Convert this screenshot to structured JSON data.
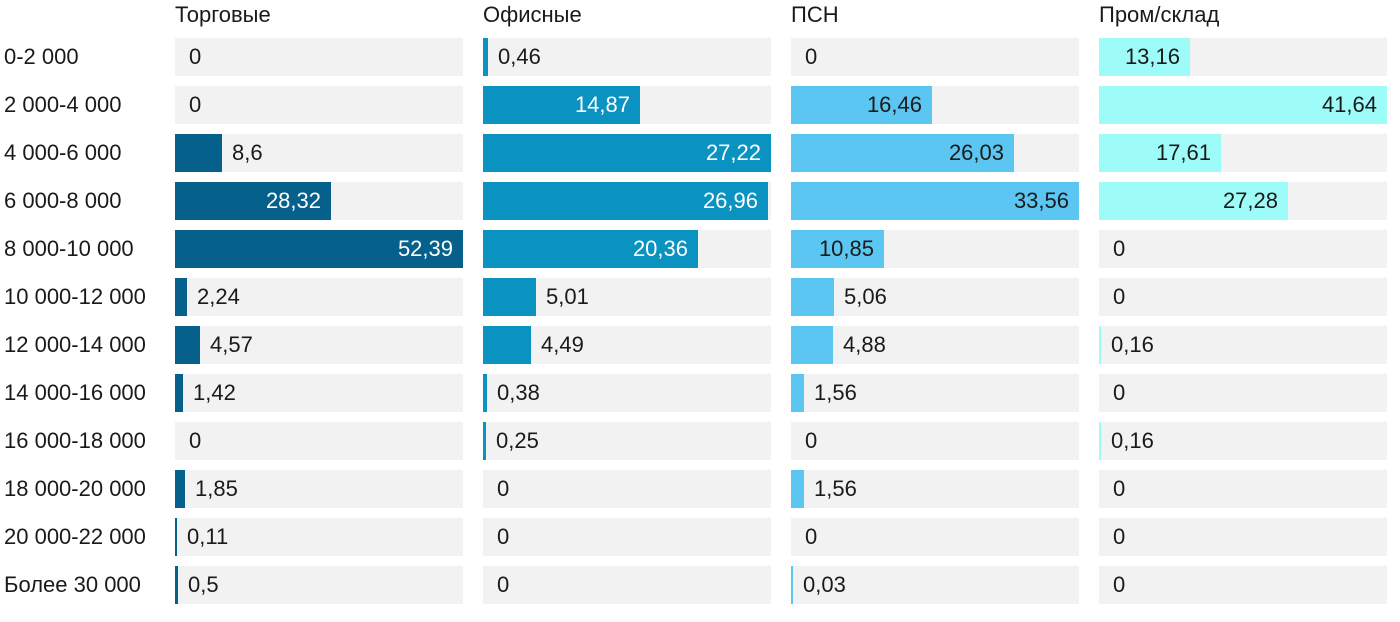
{
  "chart_data": {
    "type": "bar",
    "orientation": "horizontal",
    "layout": "small-multiples-4-columns",
    "scaling": "each column scaled to its own max value",
    "grid": "off",
    "track_color": "#f2f2f2",
    "text_color": "#1a1a1a",
    "categories": [
      "0-2 000",
      "2 000-4 000",
      "4 000-6 000",
      "6 000-8 000",
      "8 000-10 000",
      "10 000-12 000",
      "12 000-14 000",
      "14 000-16 000",
      "16 000-18 000",
      "18 000-20 000",
      "20 000-22 000",
      "Более 30 000"
    ],
    "series": [
      {
        "name": "Торговые",
        "color": "#05618c",
        "label_color_on_bar": "#ffffff",
        "values": [
          0,
          0,
          8.6,
          28.32,
          52.39,
          2.24,
          4.57,
          1.42,
          0,
          1.85,
          0.11,
          0.5
        ],
        "display": [
          "0",
          "0",
          "8,6",
          "28,32",
          "52,39",
          "2,24",
          "4,57",
          "1,42",
          "0",
          "1,85",
          "0,11",
          "0,5"
        ]
      },
      {
        "name": "Офисные",
        "color": "#0a93c0",
        "label_color_on_bar": "#ffffff",
        "values": [
          0.46,
          14.87,
          27.22,
          26.96,
          20.36,
          5.01,
          4.49,
          0.38,
          0.25,
          0,
          0,
          0
        ],
        "display": [
          "0,46",
          "14,87",
          "27,22",
          "26,96",
          "20,36",
          "5,01",
          "4,49",
          "0,38",
          "0,25",
          "0",
          "0",
          "0"
        ]
      },
      {
        "name": "ПСН",
        "color": "#5cc6f2",
        "label_color_on_bar": "#1a1a1a",
        "values": [
          0,
          16.46,
          26.03,
          33.56,
          10.85,
          5.06,
          4.88,
          1.56,
          0,
          1.56,
          0,
          0.03
        ],
        "display": [
          "0",
          "16,46",
          "26,03",
          "33,56",
          "10,85",
          "5,06",
          "4,88",
          "1,56",
          "0",
          "1,56",
          "0",
          "0,03"
        ]
      },
      {
        "name": "Пром/склад",
        "color": "#9dfcf8",
        "label_color_on_bar": "#1a1a1a",
        "values": [
          13.16,
          41.64,
          17.61,
          27.28,
          0,
          0,
          0.16,
          0,
          0.16,
          0,
          0,
          0
        ],
        "display": [
          "13,16",
          "41,64",
          "17,61",
          "27,28",
          "0",
          "0",
          "0,16",
          "0",
          "0,16",
          "0",
          "0",
          "0"
        ]
      }
    ]
  }
}
